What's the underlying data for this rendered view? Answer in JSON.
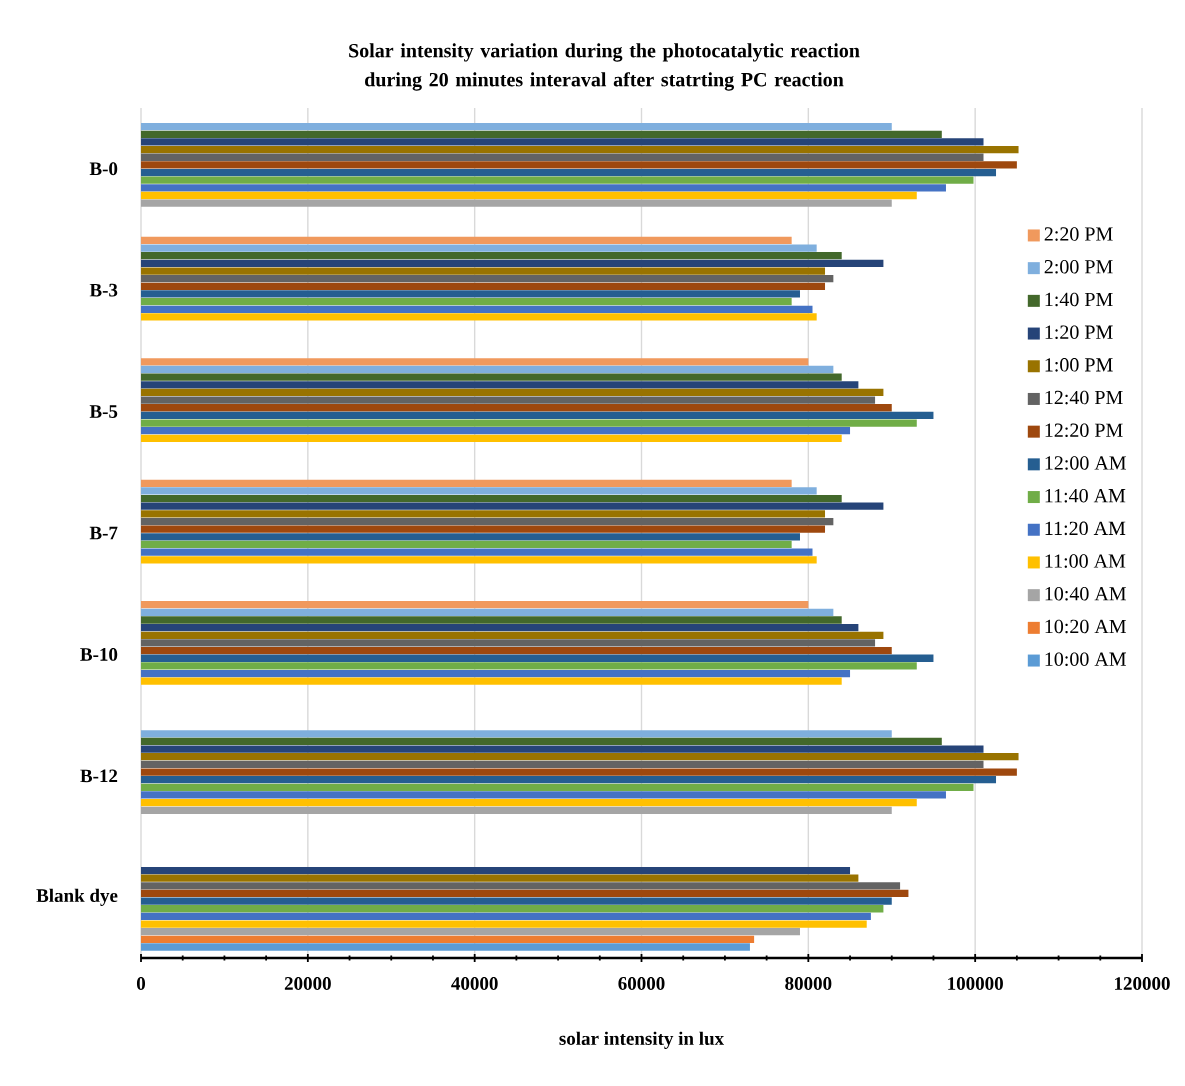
{
  "chart_data": {
    "type": "bar",
    "orientation": "horizontal",
    "title": "Solar intensity variation during the photocatalytic reaction during 20 minutes interaval after statrting PC reaction",
    "xlabel": "solar intensity in lux",
    "categories": [
      "B-0",
      "B-3",
      "B-5",
      "B-7",
      "B-10",
      "B-12",
      "Blank dye"
    ],
    "xlim": [
      0,
      120000
    ],
    "xticks": [
      0,
      20000,
      40000,
      60000,
      80000,
      100000,
      120000
    ],
    "grid": "x",
    "legend": "right",
    "series": [
      {
        "name": "2:20 PM",
        "color": "#f0995d",
        "values": [
          null,
          78000,
          80000,
          78000,
          80000,
          null,
          null
        ]
      },
      {
        "name": "2:00 PM",
        "color": "#7fafde",
        "values": [
          90000,
          81000,
          83000,
          81000,
          83000,
          90000,
          null
        ]
      },
      {
        "name": "1:40 PM",
        "color": "#43682b",
        "values": [
          96000,
          84000,
          84000,
          84000,
          84000,
          96000,
          null
        ]
      },
      {
        "name": "1:20 PM",
        "color": "#264478",
        "values": [
          101000,
          89000,
          86000,
          89000,
          86000,
          101000,
          85000
        ]
      },
      {
        "name": "1:00 PM",
        "color": "#997300",
        "values": [
          105200,
          82000,
          89000,
          82000,
          89000,
          105200,
          86000
        ]
      },
      {
        "name": "12:40 PM",
        "color": "#636363",
        "values": [
          101000,
          83000,
          88000,
          83000,
          88000,
          101000,
          91000
        ]
      },
      {
        "name": "12:20 PM",
        "color": "#9e480e",
        "values": [
          105000,
          82000,
          90000,
          82000,
          90000,
          105000,
          92000
        ]
      },
      {
        "name": "12:00 AM",
        "color": "#255e91",
        "values": [
          102500,
          79000,
          95000,
          79000,
          95000,
          102500,
          90000
        ]
      },
      {
        "name": "11:40 AM",
        "color": "#70ad47",
        "values": [
          99800,
          78000,
          93000,
          78000,
          93000,
          99800,
          89000
        ]
      },
      {
        "name": "11:20 AM",
        "color": "#4472c4",
        "values": [
          96500,
          80500,
          85000,
          80500,
          85000,
          96500,
          87500
        ]
      },
      {
        "name": "11:00 AM",
        "color": "#ffc000",
        "values": [
          93000,
          81000,
          84000,
          81000,
          84000,
          93000,
          87000
        ]
      },
      {
        "name": "10:40 AM",
        "color": "#a5a5a5",
        "values": [
          90000,
          null,
          null,
          null,
          null,
          90000,
          79000
        ]
      },
      {
        "name": "10:20 AM",
        "color": "#ed7d31",
        "values": [
          null,
          null,
          null,
          null,
          null,
          null,
          73500
        ]
      },
      {
        "name": "10:00 AM",
        "color": "#5b9bd5",
        "values": [
          null,
          null,
          null,
          null,
          null,
          null,
          73000
        ]
      }
    ]
  }
}
